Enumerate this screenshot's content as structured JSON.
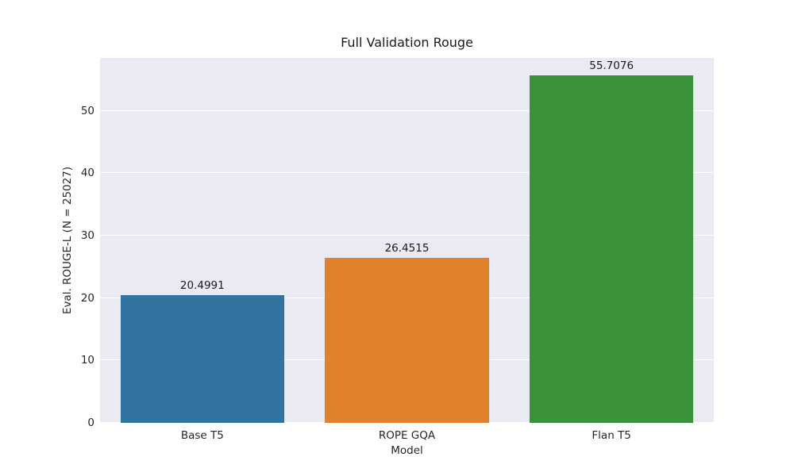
{
  "chart_data": {
    "type": "bar",
    "title": "Full Validation Rouge",
    "xlabel": "Model",
    "ylabel": "Eval. ROUGE-L (N = 25027)",
    "categories": [
      "Base T5",
      "ROPE GQA",
      "Flan T5"
    ],
    "values": [
      20.4991,
      26.4515,
      55.7076
    ],
    "value_labels": [
      "20.4991",
      "26.4515",
      "55.7076"
    ],
    "bar_colors": [
      "#3274a1",
      "#e1812c",
      "#3a923a"
    ],
    "yticks": [
      0,
      10,
      20,
      30,
      40,
      50
    ],
    "ytick_labels": [
      "0",
      "10",
      "20",
      "30",
      "40",
      "50"
    ],
    "ylim": [
      0,
      58.49
    ],
    "grid": true,
    "legend": "none",
    "plot_background_color": "#eaeaf2",
    "grid_color": "#ffffff",
    "text_color": "#262626"
  }
}
